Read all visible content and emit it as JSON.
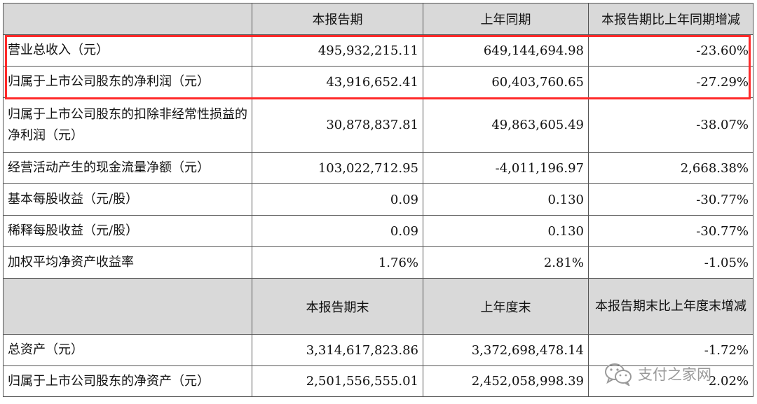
{
  "headers": {
    "blank": "",
    "current_period": "本报告期",
    "prior_period": "上年同期",
    "change": "本报告期比上年同期增减"
  },
  "rows": [
    {
      "label": "营业总收入（元）",
      "current": "495,932,215.11",
      "prior": "649,144,694.98",
      "change": "-23.60%"
    },
    {
      "label": "归属于上市公司股东的净利润（元）",
      "current": "43,916,652.41",
      "prior": "60,403,760.65",
      "change": "-27.29%"
    },
    {
      "label": "归属于上市公司股东的扣除非经常性损益的净利润（元）",
      "current": "30,878,837.81",
      "prior": "49,863,605.49",
      "change": "-38.07%"
    },
    {
      "label": "经营活动产生的现金流量净额（元）",
      "current": "103,022,712.95",
      "prior": "-4,011,196.97",
      "change": "2,668.38%"
    },
    {
      "label": "基本每股收益（元/股）",
      "current": "0.09",
      "prior": "0.130",
      "change": "-30.77%"
    },
    {
      "label": "稀释每股收益（元/股）",
      "current": "0.09",
      "prior": "0.130",
      "change": "-30.77%"
    },
    {
      "label": "加权平均净资产收益率",
      "current": "1.76%",
      "prior": "2.81%",
      "change": "-1.05%"
    }
  ],
  "headers2": {
    "blank": "",
    "current_end": "本报告期末",
    "prior_year_end": "上年度末",
    "change": "本报告期末比上年度末增减"
  },
  "rows2": [
    {
      "label": "总资产（元）",
      "current": "3,314,617,823.86",
      "prior": "3,372,698,478.14",
      "change": "-1.72%"
    },
    {
      "label": "归属于上市公司股东的净资产（元）",
      "current": "2,501,556,555.01",
      "prior": "2,452,058,998.39",
      "change": "2.02%"
    }
  ],
  "watermark": {
    "text": "支付之家网",
    "icon": "wechat-icon"
  }
}
